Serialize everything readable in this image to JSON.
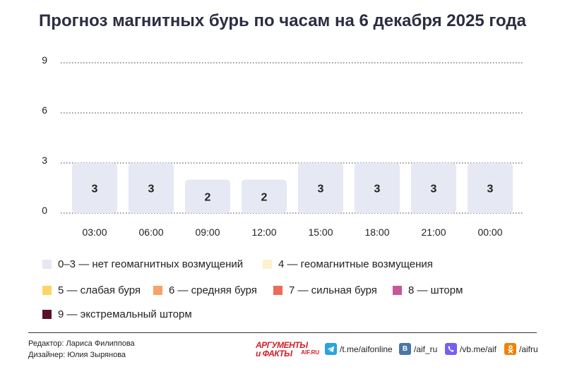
{
  "title": "Прогноз магнитных бурь по часам на 6 декабря 2025 года",
  "chart_data": {
    "type": "bar",
    "categories": [
      "03:00",
      "06:00",
      "09:00",
      "12:00",
      "15:00",
      "18:00",
      "21:00",
      "00:00"
    ],
    "values": [
      3,
      3,
      2,
      2,
      3,
      3,
      3,
      3
    ],
    "ylim": [
      0,
      9
    ],
    "yticks": [
      "0",
      "3",
      "6",
      "9"
    ],
    "grid": true,
    "bar_color": "#e6e8f3",
    "value_labels": [
      "3",
      "3",
      "2",
      "2",
      "3",
      "3",
      "3",
      "3"
    ]
  },
  "legend": [
    {
      "label": "0–3 — нет геомагнитных возмущений",
      "color": "#e6e8f3"
    },
    {
      "label": "4 — геомагнитные возмущения",
      "color": "#fdf0cf"
    },
    {
      "label": "5 — слабая буря",
      "color": "#fdd466"
    },
    {
      "label": "6 — средняя буря",
      "color": "#f7a366"
    },
    {
      "label": "7 — сильная буря",
      "color": "#ef6a5a"
    },
    {
      "label": "8 — шторм",
      "color": "#c7579a"
    },
    {
      "label": "9 — экстремальный шторм",
      "color": "#5b0f2c"
    }
  ],
  "credits": {
    "editor": "Редактор: Лариса Филиппова",
    "designer": "Дизайнер: Юлия Зырянова"
  },
  "footer": {
    "logo_main": "АРГУМЕНТЫ",
    "logo_second": "и ФАКТЫ",
    "logo_sub": "AIF.RU",
    "telegram": "/t.me/aifonline",
    "vk": "/aif_ru",
    "viber": "/vb.me/aif",
    "ok": "/aifru"
  }
}
